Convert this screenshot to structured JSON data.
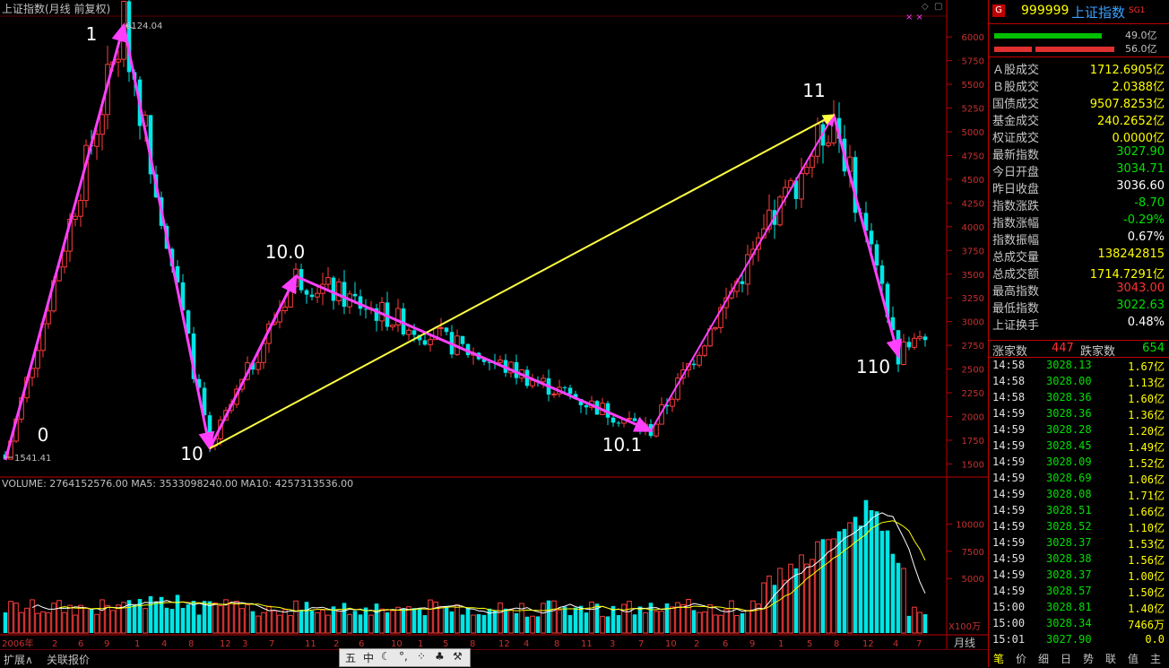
{
  "header": {
    "title": "上证指数(月线 前复权)",
    "high_marker": "6124.04",
    "low_marker": "1541.41"
  },
  "volume_header": {
    "text": "VOLUME: 2764152576.00  MA5: 3533098240.00  MA10: 4257313536.00"
  },
  "wave_labels": [
    "0",
    "1",
    "10",
    "10.0",
    "10.1",
    "11",
    "110"
  ],
  "price_axis": [
    "6000",
    "5750",
    "5500",
    "5250",
    "5000",
    "4750",
    "4500",
    "4250",
    "4000",
    "3750",
    "3500",
    "3250",
    "3000",
    "2750",
    "2500",
    "2250",
    "2000",
    "1750",
    "1500"
  ],
  "volume_axis": [
    "10000",
    "7500",
    "5000",
    "X100万"
  ],
  "time_axis": [
    "2006年",
    "2",
    "6",
    "9",
    "1",
    "4",
    "8",
    "12",
    "3",
    "7",
    "11",
    "2",
    "6",
    "10",
    "1",
    "5",
    "8",
    "12",
    "4",
    "8",
    "11",
    "3",
    "7",
    "10",
    "2",
    "6",
    "9",
    "1",
    "5",
    "8",
    "12",
    "4",
    "7"
  ],
  "period_label": "月线",
  "panel": {
    "code": "999999",
    "name": "上证指数",
    "tag": "SG1",
    "bar1_value": "49.0亿",
    "bar2_value": "56.0亿",
    "stats": [
      {
        "label": "Ａ股成交",
        "value": "1712.6905亿",
        "color": "#ffff00"
      },
      {
        "label": "Ｂ股成交",
        "value": "2.0388亿",
        "color": "#ffff00"
      },
      {
        "label": "国债成交",
        "value": "9507.8253亿",
        "color": "#ffff00"
      },
      {
        "label": "基金成交",
        "value": "240.2652亿",
        "color": "#ffff00"
      },
      {
        "label": "权证成交",
        "value": "0.0000亿",
        "color": "#ffff00"
      },
      {
        "label": "最新指数",
        "value": "3027.90",
        "color": "#00e000"
      },
      {
        "label": "今日开盘",
        "value": "3034.71",
        "color": "#00e000"
      },
      {
        "label": "昨日收盘",
        "value": "3036.60",
        "color": "#ffffff"
      },
      {
        "label": "指数涨跌",
        "value": "-8.70",
        "color": "#00e000"
      },
      {
        "label": "指数涨幅",
        "value": "-0.29%",
        "color": "#00e000"
      },
      {
        "label": "指数振幅",
        "value": "0.67%",
        "color": "#ffffff"
      },
      {
        "label": "总成交量",
        "value": "138242815",
        "color": "#ffff00"
      },
      {
        "label": "总成交额",
        "value": "1714.7291亿",
        "color": "#ffff00"
      },
      {
        "label": "最高指数",
        "value": "3043.00",
        "color": "#ff3030"
      },
      {
        "label": "最低指数",
        "value": "3022.63",
        "color": "#00e000"
      },
      {
        "label": "上证换手",
        "value": "0.48%",
        "color": "#ffffff"
      }
    ],
    "rise_label": "涨家数",
    "rise_value": "447",
    "fall_label": "跌家数",
    "fall_value": "654",
    "ticks": [
      {
        "time": "14:58",
        "price": "3028.13",
        "vol": "1.67亿"
      },
      {
        "time": "14:58",
        "price": "3028.00",
        "vol": "1.13亿"
      },
      {
        "time": "14:58",
        "price": "3028.36",
        "vol": "1.60亿"
      },
      {
        "time": "14:59",
        "price": "3028.36",
        "vol": "1.36亿"
      },
      {
        "time": "14:59",
        "price": "3028.28",
        "vol": "1.20亿"
      },
      {
        "time": "14:59",
        "price": "3028.45",
        "vol": "1.49亿"
      },
      {
        "time": "14:59",
        "price": "3028.09",
        "vol": "1.52亿"
      },
      {
        "time": "14:59",
        "price": "3028.69",
        "vol": "1.06亿"
      },
      {
        "time": "14:59",
        "price": "3028.08",
        "vol": "1.71亿"
      },
      {
        "time": "14:59",
        "price": "3028.51",
        "vol": "1.66亿"
      },
      {
        "time": "14:59",
        "price": "3028.52",
        "vol": "1.10亿"
      },
      {
        "time": "14:59",
        "price": "3028.37",
        "vol": "1.53亿"
      },
      {
        "time": "14:59",
        "price": "3028.38",
        "vol": "1.56亿"
      },
      {
        "time": "14:59",
        "price": "3028.37",
        "vol": "1.00亿"
      },
      {
        "time": "14:59",
        "price": "3028.57",
        "vol": "1.50亿"
      },
      {
        "time": "15:00",
        "price": "3028.81",
        "vol": "1.40亿"
      },
      {
        "time": "15:00",
        "price": "3028.34",
        "vol": "7466万"
      },
      {
        "time": "15:01",
        "price": "3027.90",
        "vol": "0.0"
      }
    ],
    "tabs": [
      "笔",
      "价",
      "细",
      "日",
      "势",
      "联",
      "值",
      "主"
    ]
  },
  "status": {
    "expand_label": "扩展∧",
    "related_label": "关联报价",
    "toolbar_glyphs": [
      "五",
      "中",
      "☾",
      "°,",
      "⁘",
      "♣",
      "⚒"
    ]
  },
  "chart_data": {
    "type": "candlestick",
    "title": "上证指数(月线 前复权)",
    "ylim": [
      1400,
      6200
    ],
    "high_label": "6124.04",
    "low_label": "1541.41",
    "x_start": "2006年",
    "wave_points": [
      {
        "label": "0",
        "month": 0,
        "price": 1541
      },
      {
        "label": "1",
        "month": 22,
        "price": 6124
      },
      {
        "label": "10",
        "month": 38,
        "price": 1664
      },
      {
        "label": "10.0",
        "month": 54,
        "price": 3478
      },
      {
        "label": "10.1",
        "month": 120,
        "price": 1849
      },
      {
        "label": "11",
        "month": 154,
        "price": 5178
      },
      {
        "label": "110",
        "month": 166,
        "price": 2638
      }
    ]
  }
}
